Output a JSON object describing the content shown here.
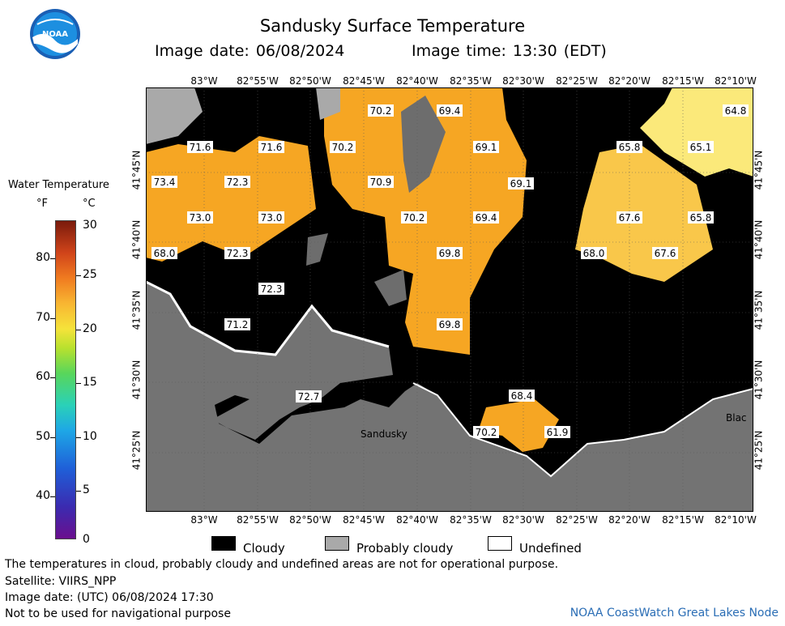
{
  "header": {
    "title": "Sandusky Surface Temperature",
    "image_date": "Image date: 06/08/2024",
    "image_time": "Image time: 13:30 (EDT)"
  },
  "logo_text": "NOAA",
  "legend": {
    "title": "Water Temperature",
    "unit_f": "°F",
    "unit_c": "°C",
    "f_ticks": [
      "40",
      "50",
      "60",
      "70",
      "80"
    ],
    "c_ticks": [
      "0",
      "5",
      "10",
      "15",
      "20",
      "25",
      "30"
    ]
  },
  "map": {
    "lon_labels": [
      "83°W",
      "82°55'W",
      "82°50'W",
      "82°45'W",
      "82°40'W",
      "82°35'W",
      "82°30'W",
      "82°25'W",
      "82°20'W",
      "82°15'W",
      "82°10'W"
    ],
    "lat_labels": [
      "41°45'N",
      "41°40'N",
      "41°35'N",
      "41°30'N",
      "41°25'N"
    ],
    "place_labels": [
      "Sandusky",
      "Blac"
    ],
    "temps": [
      {
        "v": "70.2"
      },
      {
        "v": "69.4"
      },
      {
        "v": "64.8"
      },
      {
        "v": "71.6"
      },
      {
        "v": "71.6"
      },
      {
        "v": "70.2"
      },
      {
        "v": "69.1"
      },
      {
        "v": "65.8"
      },
      {
        "v": "65.1"
      },
      {
        "v": "73.4"
      },
      {
        "v": "72.3"
      },
      {
        "v": "70.9"
      },
      {
        "v": "69.1"
      },
      {
        "v": "73.0"
      },
      {
        "v": "73.0"
      },
      {
        "v": "70.2"
      },
      {
        "v": "69.4"
      },
      {
        "v": "67.6"
      },
      {
        "v": "65.8"
      },
      {
        "v": "68.0"
      },
      {
        "v": "72.3"
      },
      {
        "v": "69.8"
      },
      {
        "v": "68.0"
      },
      {
        "v": "67.6"
      },
      {
        "v": "72.3"
      },
      {
        "v": "71.2"
      },
      {
        "v": "69.8"
      },
      {
        "v": "72.7"
      },
      {
        "v": "68.4"
      },
      {
        "v": "70.2"
      },
      {
        "v": "61.9"
      }
    ],
    "colors": {
      "cloudy": "#000000",
      "probably_cloudy": "#a9a9a9",
      "land": "#737373",
      "warm": "#f6a623",
      "mid": "#f9c74a",
      "cool": "#fbe97a"
    }
  },
  "key": {
    "cloudy": "Cloudy",
    "probably_cloudy": "Probably cloudy",
    "undefined": "Undefined"
  },
  "notes": {
    "line1": "The temperatures in cloud, probably cloudy and undefined areas are not for operational purpose.",
    "line2": "Satellite: VIIRS_NPP",
    "line3": "Image date: (UTC) 06/08/2024  17:30",
    "line4": "Not to be used for navigational purpose"
  },
  "credit": "NOAA CoastWatch Great Lakes Node"
}
